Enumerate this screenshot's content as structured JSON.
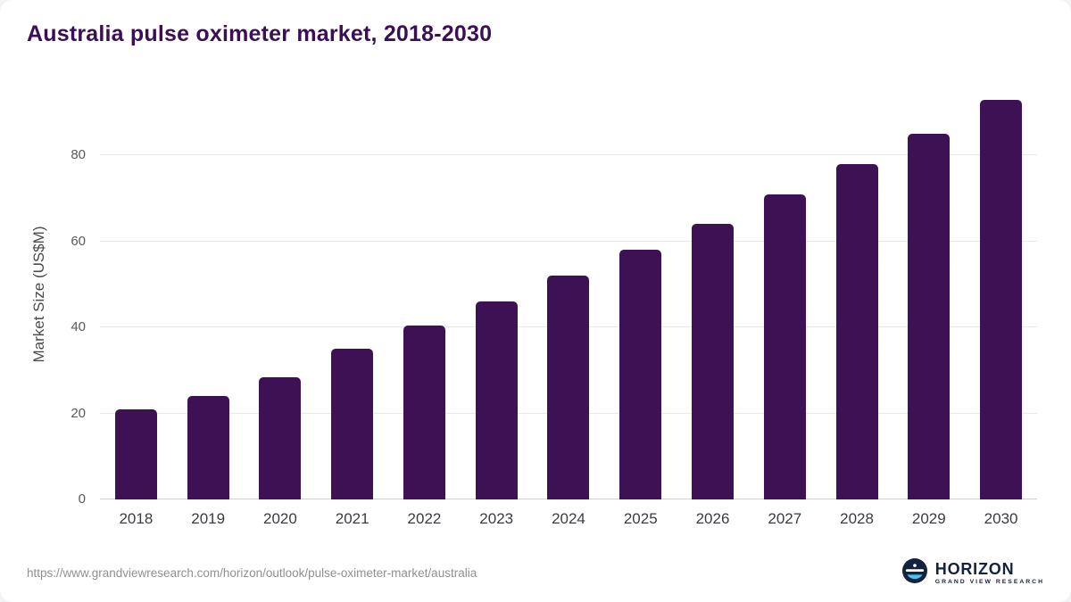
{
  "title": "Australia pulse oximeter market, 2018-2030",
  "colors": {
    "title": "#3b0e56",
    "bar": "#3e1155",
    "grid": "#e9e9ec",
    "axis_text": "#5a5a5f"
  },
  "chart_data": {
    "type": "bar",
    "title": "Australia pulse oximeter market, 2018-2030",
    "categories": [
      "2018",
      "2019",
      "2020",
      "2021",
      "2022",
      "2023",
      "2024",
      "2025",
      "2026",
      "2027",
      "2028",
      "2029",
      "2030"
    ],
    "values": [
      21,
      24,
      28.5,
      35,
      40.5,
      46,
      52,
      58,
      64,
      71,
      78,
      85,
      93
    ],
    "xlabel": "",
    "ylabel": "Market Size (US$M)",
    "ylim": [
      0,
      95
    ],
    "yticks": [
      0,
      20,
      40,
      60,
      80
    ],
    "grid": true,
    "legend": false,
    "bar_color": "#3e1155"
  },
  "footer": {
    "source_url": "https://www.grandviewresearch.com/horizon/outlook/pulse-oximeter-market/australia",
    "logo_title": "HORIZON",
    "logo_subtitle": "GRAND VIEW RESEARCH"
  }
}
